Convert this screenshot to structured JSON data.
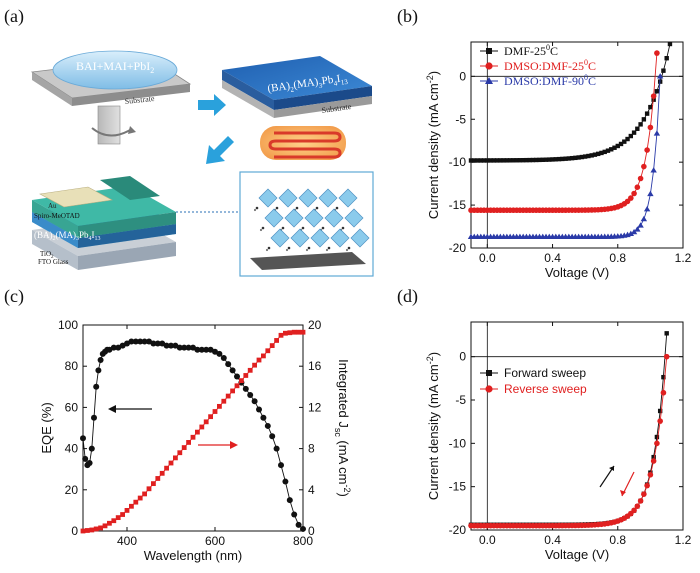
{
  "panels": {
    "a": "(a)",
    "b": "(b)",
    "c": "(c)",
    "d": "(d)"
  },
  "schematic": {
    "spin_solution": "BAI+MAI+PbI",
    "spin_solution_sub": "2",
    "substrate_1": "Substrate",
    "film_label": "(BA)",
    "film_label_2": "2",
    "film_label_3": "(MA)",
    "film_label_4": "3",
    "film_label_5": "Pb",
    "film_label_6": "4",
    "film_label_7": "I",
    "film_label_8": "13",
    "substrate_2": "Substrate",
    "layer_au": "Au",
    "layer_spiro": "Spiro-MeOTAD",
    "layer_perov": "(BA)",
    "layer_perov_2": "2",
    "layer_perov_3": "(MA)",
    "layer_perov_4": "3",
    "layer_perov_5": "Pb",
    "layer_perov_6": "4",
    "layer_perov_7": "I",
    "layer_perov_8": "13",
    "layer_tio2": "TiO",
    "layer_tio2_sub": "2",
    "layer_fto": "FTO Glass",
    "colors": {
      "film_blue": "#2b6fb8",
      "arrow_blue": "#2aa1dc",
      "heat_red": "#d93a2a",
      "cell_teal": "#3fb9a6"
    }
  },
  "chart_data": [
    {
      "panel": "b",
      "type": "line",
      "xlabel": "Voltage (V)",
      "ylabel": "Current density (mA cm",
      "ylabel_sup": "-2",
      "ylabel_end": ")",
      "xlim": [
        -0.1,
        1.2
      ],
      "ylim": [
        -20,
        4
      ],
      "xticks": [
        "0.0",
        "0.4",
        "0.8",
        "1.2"
      ],
      "xtick_values": [
        0,
        0.4,
        0.8,
        1.2
      ],
      "yticks": [
        "0",
        "-5",
        "-10",
        "-15",
        "-20"
      ],
      "ytick_values": [
        0,
        -5,
        -10,
        -15,
        -20
      ],
      "series": [
        {
          "name": "DMF-25",
          "name_sup": "0",
          "name_end": "C",
          "color": "#111111",
          "marker": "square",
          "jsc": 9.8,
          "voc": 1.07,
          "k": 6.5
        },
        {
          "name": "DMSO:DMF-25",
          "name_sup": "0",
          "name_end": "C",
          "color": "#e02020",
          "marker": "circle",
          "jsc": 15.6,
          "voc": 1.03,
          "k": 16
        },
        {
          "name": "DMSO:DMF-90",
          "name_sup": "0",
          "name_end": "C",
          "color": "#2a3aa8",
          "marker": "triangle",
          "jsc": 18.7,
          "voc": 1.06,
          "k": 22
        }
      ]
    },
    {
      "panel": "c",
      "type": "line",
      "xlabel": "Wavelength (nm)",
      "ylabel": "EQE (%)",
      "y2label": "Integrated J",
      "y2label_sub": "sc",
      "y2label_mid": " (mA cm",
      "y2label_sup": "-2",
      "y2label_end": ")",
      "xlim": [
        300,
        800
      ],
      "ylim": [
        0,
        100
      ],
      "y2lim": [
        0,
        20
      ],
      "xticks": [
        "400",
        "600",
        "800"
      ],
      "xtick_values": [
        400,
        600,
        800
      ],
      "yticks": [
        "0",
        "20",
        "40",
        "60",
        "80",
        "100"
      ],
      "ytick_values": [
        0,
        20,
        40,
        60,
        80,
        100
      ],
      "y2ticks": [
        "0",
        "4",
        "8",
        "12",
        "16",
        "20"
      ],
      "y2tick_values": [
        0,
        4,
        8,
        12,
        16,
        20
      ],
      "series": [
        {
          "name": "EQE",
          "axis": "left",
          "color": "#111111",
          "marker": "circle",
          "x": [
            300,
            305,
            310,
            315,
            320,
            325,
            330,
            335,
            340,
            345,
            350,
            355,
            360,
            370,
            380,
            390,
            400,
            410,
            420,
            430,
            440,
            450,
            460,
            470,
            480,
            490,
            500,
            510,
            520,
            530,
            540,
            550,
            560,
            570,
            580,
            590,
            600,
            610,
            620,
            630,
            640,
            650,
            660,
            670,
            680,
            690,
            700,
            710,
            720,
            730,
            740,
            750,
            760,
            770,
            780,
            790,
            800
          ],
          "y": [
            45,
            35,
            32,
            33,
            40,
            55,
            70,
            78,
            83,
            86,
            87,
            88,
            88,
            89,
            89,
            90,
            91,
            92,
            92,
            92,
            92,
            92,
            91,
            91,
            91,
            90,
            90,
            90,
            89,
            89,
            89,
            89,
            88,
            88,
            88,
            88,
            87,
            86,
            84,
            81,
            78,
            75,
            72,
            69,
            66,
            63,
            59,
            55,
            51,
            46,
            40,
            32,
            24,
            15,
            8,
            3,
            1
          ]
        },
        {
          "name": "Integrated Jsc",
          "axis": "right",
          "color": "#e02020",
          "marker": "square",
          "x": [
            300,
            310,
            320,
            330,
            340,
            350,
            360,
            370,
            380,
            390,
            400,
            410,
            420,
            430,
            440,
            450,
            460,
            470,
            480,
            490,
            500,
            510,
            520,
            530,
            540,
            550,
            560,
            570,
            580,
            590,
            600,
            610,
            620,
            630,
            640,
            650,
            660,
            670,
            680,
            690,
            700,
            710,
            720,
            730,
            740,
            750,
            760,
            770,
            780,
            790,
            800
          ],
          "y": [
            0,
            0.05,
            0.1,
            0.2,
            0.3,
            0.5,
            0.75,
            1.0,
            1.3,
            1.6,
            2.0,
            2.4,
            2.8,
            3.2,
            3.6,
            4.1,
            4.6,
            5.1,
            5.6,
            6.1,
            6.6,
            7.1,
            7.6,
            8.1,
            8.6,
            9.1,
            9.6,
            10.1,
            10.6,
            11.1,
            11.6,
            12.1,
            12.6,
            13.1,
            13.6,
            14.1,
            14.6,
            15.1,
            15.6,
            16.1,
            16.6,
            17.0,
            17.5,
            18.0,
            18.5,
            19.0,
            19.2,
            19.25,
            19.3,
            19.3,
            19.3
          ]
        }
      ]
    },
    {
      "panel": "d",
      "type": "line",
      "xlabel": "Voltage (V)",
      "ylabel": "Current density (mA cm",
      "ylabel_sup": "-2",
      "ylabel_end": ")",
      "xlim": [
        -0.1,
        1.2
      ],
      "ylim": [
        -20,
        4
      ],
      "xticks": [
        "0.0",
        "0.4",
        "0.8",
        "1.2"
      ],
      "xtick_values": [
        0,
        0.4,
        0.8,
        1.2
      ],
      "yticks": [
        "0",
        "-5",
        "-10",
        "-15",
        "-20"
      ],
      "ytick_values": [
        0,
        -5,
        -10,
        -15,
        -20
      ],
      "series": [
        {
          "name": "Forward sweep",
          "color": "#111111",
          "marker": "square",
          "jsc": 19.4,
          "voc": 1.09,
          "k": 13
        },
        {
          "name": "Reverse sweep",
          "color": "#e02020",
          "marker": "circle",
          "jsc": 19.5,
          "voc": 1.1,
          "k": 12
        }
      ]
    }
  ]
}
